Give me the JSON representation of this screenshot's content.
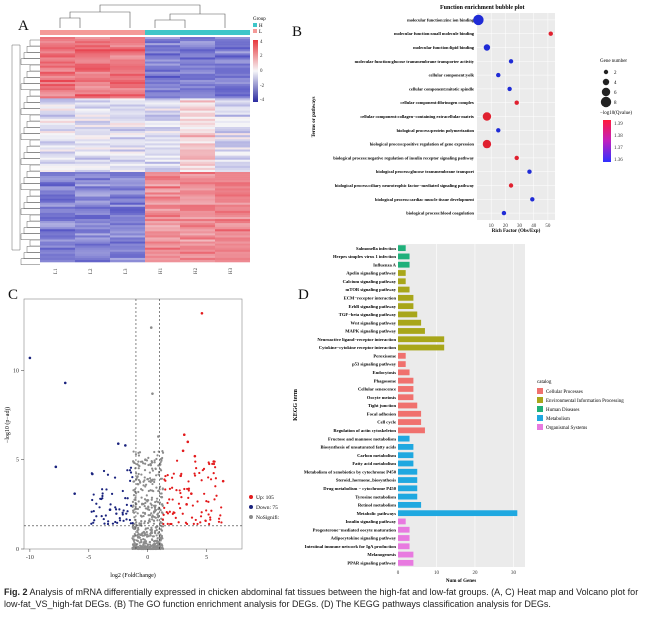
{
  "figure": {
    "label": "Fig. 2",
    "caption": "Analysis of mRNA differentially expressed in chicken abdominal fat tissues between the high-fat and low-fat groups. (A, C) Heat map and Volcano plot for low-fat_VS_high-fat DEGs. (B) The GO function enrichment analysis for DEGs. (D) The KEGG pathways classification analysis for DEGs."
  },
  "panels": {
    "A": {
      "letter": "A",
      "legend_title": "Group",
      "legend_groups": [
        "H",
        "L"
      ],
      "scale_ticks": [
        "4",
        "2",
        "0",
        "-2",
        "-4"
      ],
      "samples": [
        "L1",
        "L2",
        "L3",
        "H1",
        "H2",
        "H3"
      ]
    },
    "B": {
      "letter": "B"
    },
    "C": {
      "letter": "C"
    },
    "D": {
      "letter": "D"
    }
  },
  "chart_data": [
    {
      "type": "scatter",
      "panel": "B",
      "title": "Function enrichment bubble plot",
      "xlabel": "Rich Factor (Obs/Exp)",
      "ylabel": "Terms or pathways",
      "xlim": [
        0,
        55
      ],
      "xticks": [
        "10",
        "20",
        "30",
        "40",
        "50"
      ],
      "terms": [
        "molecular function:zinc ion binding",
        "molecular function:small molecule binding",
        "molecular function:lipid binding",
        "molecular function:glucose transmembrane transporter activity",
        "cellular component:yolk",
        "cellular component:mitotic spindle",
        "cellular component:fibrinogen complex",
        "cellular component:collagen−containing extracellular matrix",
        "biological process:protein polymerization",
        "biological process:positive regulation of gene expression",
        "biological process:negative regulation of insulin receptor signaling pathway",
        "biological process:glucose transmembrane transport",
        "biological process:ciliary neurotrophic factor−mediated signaling pathway",
        "biological process:cardiac muscle tissue development",
        "biological process:blood coagulation"
      ],
      "rich_factor": [
        1,
        52,
        7,
        24,
        15,
        23,
        28,
        7,
        15,
        7,
        28,
        37,
        24,
        39,
        19
      ],
      "gene_number": [
        8,
        2,
        4,
        2,
        2,
        2,
        2,
        6,
        2,
        6,
        2,
        2,
        2,
        2,
        2
      ],
      "qvalue_color": [
        "#1f2bd6",
        "#e0202f",
        "#1f2bd6",
        "#1f2bd6",
        "#1f2bd6",
        "#1f2bd6",
        "#e0202f",
        "#e0202f",
        "#1f2bd6",
        "#e0202f",
        "#e0202f",
        "#1f2bd6",
        "#e0202f",
        "#1f2bd6",
        "#1f2bd6"
      ],
      "legend": {
        "size_title": "Gene number",
        "size_values": [
          "2",
          "4",
          "6",
          "8"
        ],
        "color_title": "−log10(Qvalue)",
        "color_ticks": [
          "1.39",
          "1.38",
          "1.37",
          "1.36"
        ]
      }
    },
    {
      "type": "scatter",
      "panel": "C",
      "xlabel": "log2 (FoldChange)",
      "ylabel": "−log10 (p−adj)",
      "xlim": [
        -10.5,
        8
      ],
      "ylim": [
        0,
        14
      ],
      "xticks": [
        "-10",
        "-5",
        "0",
        "5"
      ],
      "yticks": [
        "0",
        "5",
        "10"
      ],
      "legend": [
        {
          "name": "Up: 105",
          "color": "#e31a1c"
        },
        {
          "name": "Down: 75",
          "color": "#1a237e"
        },
        {
          "name": "NoSignifi: 5166",
          "color": "#8c8c8c"
        }
      ],
      "series": [
        {
          "name": "Up: 105",
          "color": "#e31a1c",
          "x": [
            4.6,
            3.1,
            3.4,
            3.0,
            4.0,
            5.6,
            6.4,
            2.8,
            3.7,
            3.3
          ],
          "y": [
            13.2,
            6.4,
            6.0,
            5.5,
            5.2,
            4.9,
            3.8,
            4.1,
            3.1,
            2.5
          ]
        },
        {
          "name": "Down: 75",
          "color": "#1a237e",
          "x": [
            -10.0,
            -7.0,
            -7.8,
            -2.5,
            -4.7,
            -6.2,
            -3.2,
            -1.9
          ],
          "y": [
            10.7,
            9.3,
            4.6,
            5.9,
            4.2,
            3.1,
            2.2,
            5.8
          ]
        },
        {
          "name": "NoSignifi: 5166",
          "color": "#8c8c8c",
          "x": [
            0.3,
            0.4,
            -0.2,
            0.9
          ],
          "y": [
            12.4,
            8.7,
            5.0,
            6.3
          ]
        }
      ]
    },
    {
      "type": "bar",
      "panel": "D",
      "orientation": "horizontal",
      "xlabel": "Num of Genes",
      "ylabel": "KEGG term",
      "xlim": [
        0,
        33
      ],
      "xticks": [
        "0",
        "10",
        "20",
        "30"
      ],
      "categories": [
        "Salmonella infection",
        "Herpes simplex virus 1 infection",
        "Influenza A",
        "Apelin signaling pathway",
        "Calcium signaling pathway",
        "mTOR signaling pathway",
        "ECM−receptor interaction",
        "ErbB signaling pathway",
        "TGF−beta signaling pathway",
        "Wnt signaling pathway",
        "MAPK signaling pathway",
        "Neuroactive ligand−receptor interaction",
        "Cytokine−cytokine receptor interaction",
        "Peroxisome",
        "p53 signaling pathway",
        "Endocytosis",
        "Phagosome",
        "Cellular senescence",
        "Oocyte meiosis",
        "Tight junction",
        "Focal adhesion",
        "Cell cycle",
        "Regulation of actin cytoskeleton",
        "Fructose and mannose metabolism",
        "Biosynthesis of unsaturated fatty acids",
        "Carbon metabolism",
        "Fatty acid metabolism",
        "Metabolism of xenobiotics by cytochrome P450",
        "Steroid_hormone_biosynthesis",
        "Drug metabolism − cytochrome P450",
        "Tyrosine metabolism",
        "Retinol metabolism",
        "Metabolic pathways",
        "Insulin signaling pathway",
        "Progesterone−mediated oocyte maturation",
        "Adipocytokine signaling pathway",
        "Intestinal immune network for IgA production",
        "Melanogenesis",
        "PPAR signaling pathway"
      ],
      "values": [
        2,
        3,
        3,
        2,
        2,
        3,
        4,
        4,
        5,
        6,
        7,
        12,
        12,
        2,
        2,
        3,
        4,
        4,
        4,
        5,
        6,
        6,
        7,
        3,
        4,
        4,
        4,
        5,
        5,
        5,
        5,
        6,
        31,
        2,
        3,
        3,
        3,
        4,
        4
      ],
      "catalog": [
        "Human Diseases",
        "Human Diseases",
        "Human Diseases",
        "Environmental Information Processing",
        "Environmental Information Processing",
        "Environmental Information Processing",
        "Environmental Information Processing",
        "Environmental Information Processing",
        "Environmental Information Processing",
        "Environmental Information Processing",
        "Environmental Information Processing",
        "Environmental Information Processing",
        "Environmental Information Processing",
        "Cellular Processes",
        "Cellular Processes",
        "Cellular Processes",
        "Cellular Processes",
        "Cellular Processes",
        "Cellular Processes",
        "Cellular Processes",
        "Cellular Processes",
        "Cellular Processes",
        "Cellular Processes",
        "Metabolism",
        "Metabolism",
        "Metabolism",
        "Metabolism",
        "Metabolism",
        "Metabolism",
        "Metabolism",
        "Metabolism",
        "Metabolism",
        "Metabolism",
        "Organismal Systems",
        "Organismal Systems",
        "Organismal Systems",
        "Organismal Systems",
        "Organismal Systems",
        "Organismal Systems"
      ],
      "legend_title": "catalog",
      "legend": [
        {
          "name": "Cellular Processes",
          "color": "#f0716e"
        },
        {
          "name": "Environmental Information Processing",
          "color": "#a8a61a"
        },
        {
          "name": "Human Diseases",
          "color": "#1fb07a"
        },
        {
          "name": "Metabolism",
          "color": "#1fa8e0"
        },
        {
          "name": "Organismal Systems",
          "color": "#e87ae0"
        }
      ]
    }
  ]
}
